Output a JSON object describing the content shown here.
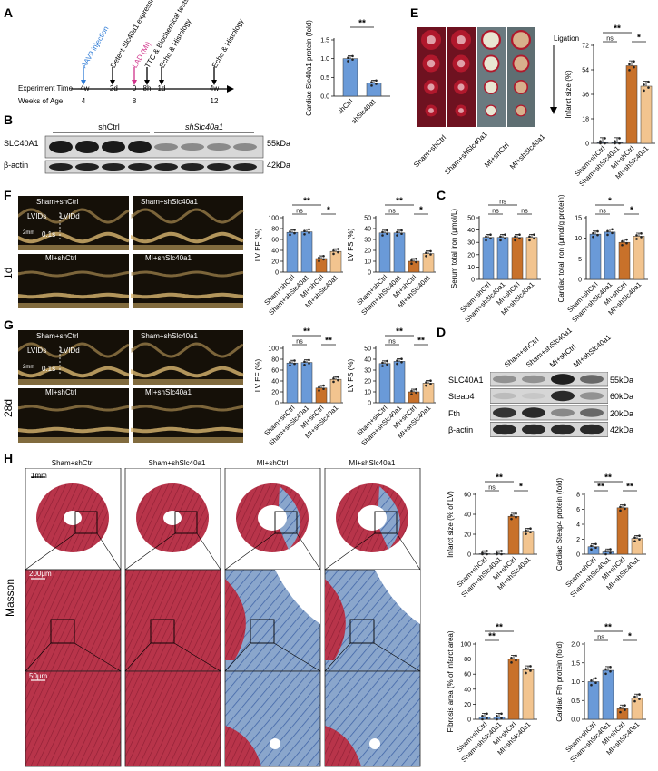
{
  "panels": {
    "A": "A",
    "B": "B",
    "C": "C",
    "D": "D",
    "E": "E",
    "F": "F",
    "G": "G",
    "H": "H"
  },
  "timeline": {
    "events": [
      {
        "label": "AAV9 injection",
        "color": "#2e7bd6",
        "x": "-4w"
      },
      {
        "label": "Detect Slc40a1 expression",
        "color": "#000",
        "x": "-2d"
      },
      {
        "label": "LAD (MI)",
        "color": "#d0328a",
        "x": "0"
      },
      {
        "label": "TTC & Biochemical tests",
        "color": "#000",
        "x": "8h"
      },
      {
        "label": "Echo & Histology",
        "color": "#000",
        "x": "1d"
      },
      {
        "label": "Echo & Histology",
        "color": "#000",
        "x": "4w"
      }
    ],
    "row1_title": "Experiment Time",
    "row1": [
      "-4w",
      "-2d",
      "0",
      "8h",
      "1d",
      "4w"
    ],
    "row2_title": "Weeks of Age",
    "row2": [
      "4",
      "",
      "8",
      "",
      "",
      "12"
    ]
  },
  "groups": {
    "sham_ctrl": "Sham+shCtrl",
    "sham_sh": "Sham+shSlc40a1",
    "mi_ctrl": "MI+shCtrl",
    "mi_sh": "MI+shSlc40a1",
    "shctrl": "shCtrl",
    "shslc": "shSlc40a1"
  },
  "panelB": {
    "header_ctrl": "shCtrl",
    "header_sh": "shSlc40a1",
    "rows": [
      {
        "name": "SLC40A1",
        "kda": "55kDa"
      },
      {
        "name": "β-actin",
        "kda": "42kDa"
      }
    ]
  },
  "panelD": {
    "rows": [
      {
        "name": "SLC40A1",
        "kda": "55kDa"
      },
      {
        "name": "Steap4",
        "kda": "60kDa"
      },
      {
        "name": "Fth",
        "kda": "20kDa"
      },
      {
        "name": "β-actin",
        "kda": "42kDa"
      }
    ]
  },
  "panelE": {
    "ligation": "Ligation"
  },
  "echo": {
    "LVIDs": "LVIDs",
    "LVIDd": "LVIDd",
    "time_scale": "0.1s",
    "depth_scale": "2mm",
    "day1": "1d",
    "day28": "28d"
  },
  "masson": {
    "stain": "Masson",
    "scale1": "1mm",
    "scale2": "200μm",
    "scale3": "50μm"
  },
  "colors": {
    "blue": "#6a9ad8",
    "orange": "#c8712a",
    "peach": "#f2c48f",
    "sham_sh": "#6a9ad8"
  },
  "chart_data": [
    {
      "id": "B_bar",
      "type": "bar",
      "ylabel": "Cardiac Slc40a1 protein (fold)",
      "ylim": [
        0,
        1.5
      ],
      "yticks": [
        "0.0",
        "0.5",
        "1.0",
        "1.5"
      ],
      "categories": [
        "shCtrl",
        "shSlc40a1"
      ],
      "values": [
        1.0,
        0.35
      ],
      "sig": [
        {
          "text": "**"
        }
      ]
    },
    {
      "id": "E_bar",
      "type": "bar",
      "ylabel": "Infarct size (%)",
      "ylim": [
        0,
        72
      ],
      "yticks": [
        "0",
        "18",
        "36",
        "54",
        "72"
      ],
      "categories": [
        "Sham+shCtrl",
        "Sham+shSlc40a1",
        "MI+shCtrl",
        "MI+shSlc40a1"
      ],
      "values": [
        0.5,
        0.5,
        57,
        42
      ],
      "sig": [
        {
          "text": "**"
        },
        {
          "text": "ns"
        },
        {
          "text": "*"
        }
      ]
    },
    {
      "id": "F_EF",
      "type": "bar",
      "ylabel": "LV EF (%)",
      "ylim": [
        0,
        100
      ],
      "yticks": [
        "0",
        "20",
        "40",
        "60",
        "80",
        "100"
      ],
      "categories": [
        "Sham+shCtrl",
        "Sham+shSlc40a1",
        "MI+shCtrl",
        "MI+shSlc40a1"
      ],
      "values": [
        73,
        74,
        25,
        38
      ],
      "sig": [
        {
          "text": "**"
        },
        {
          "text": "ns"
        },
        {
          "text": "*"
        }
      ]
    },
    {
      "id": "F_FS",
      "type": "bar",
      "ylabel": "LV FS (%)",
      "ylim": [
        0,
        50
      ],
      "yticks": [
        "0",
        "10",
        "20",
        "30",
        "40",
        "50"
      ],
      "categories": [
        "Sham+shCtrl",
        "Sham+shSlc40a1",
        "MI+shCtrl",
        "MI+shSlc40a1"
      ],
      "values": [
        36,
        36,
        10,
        17
      ],
      "sig": [
        {
          "text": "**"
        },
        {
          "text": "ns"
        },
        {
          "text": "*"
        }
      ]
    },
    {
      "id": "C_serum",
      "type": "bar",
      "ylabel": "Serum total iron (μmol/L)",
      "ylim": [
        0,
        50
      ],
      "yticks": [
        "0",
        "10",
        "20",
        "30",
        "40",
        "50"
      ],
      "categories": [
        "Sham+shCtrl",
        "Sham+shSlc40a1",
        "MI+shCtrl",
        "MI+shSlc40a1"
      ],
      "values": [
        34,
        34,
        34,
        34
      ],
      "sig": [
        {
          "text": "ns"
        },
        {
          "text": "ns"
        },
        {
          "text": "ns"
        }
      ]
    },
    {
      "id": "C_cardiac",
      "type": "bar",
      "ylabel": "Cardiac total iron (μmol/g protein)",
      "ylim": [
        0,
        15
      ],
      "yticks": [
        "0",
        "5",
        "10",
        "15"
      ],
      "categories": [
        "Sham+shCtrl",
        "Sham+shSlc40a1",
        "MI+shCtrl",
        "MI+shSlc40a1"
      ],
      "values": [
        11,
        11.5,
        9,
        10.5
      ],
      "sig": [
        {
          "text": "*"
        },
        {
          "text": "ns"
        },
        {
          "text": "*"
        }
      ]
    },
    {
      "id": "G_EF",
      "type": "bar",
      "ylabel": "LV EF (%)",
      "ylim": [
        0,
        100
      ],
      "yticks": [
        "0",
        "20",
        "40",
        "60",
        "80",
        "100"
      ],
      "categories": [
        "Sham+shCtrl",
        "Sham+shSlc40a1",
        "MI+shCtrl",
        "MI+shSlc40a1"
      ],
      "values": [
        73,
        74,
        27,
        43
      ],
      "sig": [
        {
          "text": "**"
        },
        {
          "text": "ns"
        },
        {
          "text": "**"
        }
      ]
    },
    {
      "id": "G_FS",
      "type": "bar",
      "ylabel": "LV FS (%)",
      "ylim": [
        0,
        50
      ],
      "yticks": [
        "0",
        "10",
        "20",
        "30",
        "40",
        "50"
      ],
      "categories": [
        "Sham+shCtrl",
        "Sham+shSlc40a1",
        "MI+shCtrl",
        "MI+shSlc40a1"
      ],
      "values": [
        36,
        38,
        10,
        18
      ],
      "sig": [
        {
          "text": "**"
        },
        {
          "text": "ns"
        },
        {
          "text": "**"
        }
      ]
    },
    {
      "id": "H_infarct",
      "type": "bar",
      "ylabel": "Infarct size (% of LV)",
      "ylim": [
        0,
        60
      ],
      "yticks": [
        "0",
        "20",
        "40",
        "60"
      ],
      "categories": [
        "Sham+shCtrl",
        "Sham+shSlc40a1",
        "MI+shCtrl",
        "MI+shSlc40a1"
      ],
      "values": [
        0.5,
        0.5,
        38,
        23
      ],
      "sig": [
        {
          "text": "**"
        },
        {
          "text": "ns"
        },
        {
          "text": "*"
        }
      ]
    },
    {
      "id": "H_steap4",
      "type": "bar",
      "ylabel": "Cardiac Steap4 protein (fold)",
      "ylim": [
        0,
        8
      ],
      "yticks": [
        "0",
        "2",
        "4",
        "6",
        "8"
      ],
      "categories": [
        "Sham+shCtrl",
        "Sham+shSlc40a1",
        "MI+shCtrl",
        "MI+shSlc40a1"
      ],
      "values": [
        1.0,
        0.3,
        6.2,
        2.1
      ],
      "sig": [
        {
          "text": "**"
        },
        {
          "text": "**"
        },
        {
          "text": "**"
        }
      ]
    },
    {
      "id": "H_fibrosis",
      "type": "bar",
      "ylabel": "Fibrosis area (% of infarct area)",
      "ylim": [
        0,
        100
      ],
      "yticks": [
        "0",
        "20",
        "40",
        "60",
        "80",
        "100"
      ],
      "categories": [
        "Sham+shCtrl",
        "Sham+shSlc40a1",
        "MI+shCtrl",
        "MI+shSlc40a1"
      ],
      "values": [
        3,
        3,
        80,
        66
      ],
      "sig": [
        {
          "text": "**"
        },
        {
          "text": "**"
        }
      ]
    },
    {
      "id": "H_fth",
      "type": "bar",
      "ylabel": "Cardiac Fth protein (fold)",
      "ylim": [
        0,
        2.0
      ],
      "yticks": [
        "0.0",
        "0.5",
        "1.0",
        "1.5",
        "2.0"
      ],
      "categories": [
        "Sham+shCtrl",
        "Sham+shSlc40a1",
        "MI+shCtrl",
        "MI+shSlc40a1"
      ],
      "values": [
        1.0,
        1.3,
        0.28,
        0.57
      ],
      "sig": [
        {
          "text": "**"
        },
        {
          "text": "ns"
        },
        {
          "text": "*"
        }
      ]
    }
  ]
}
